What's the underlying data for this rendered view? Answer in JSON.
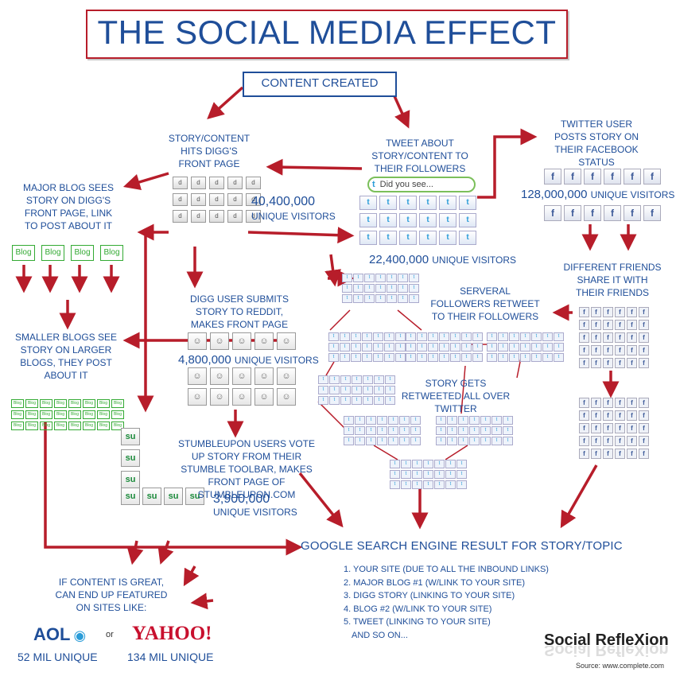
{
  "title": "THE SOCIAL MEDIA EFFECT",
  "content_created": "CONTENT CREATED",
  "labels": {
    "digg_front": "STORY/CONTENT HITS DIGG'S FRONT PAGE",
    "tweet_about": "TWEET ABOUT STORY/CONTENT TO THEIR FOLLOWERS",
    "twitter_fb": "TWITTER USER POSTS STORY ON THEIR FACEBOOK STATUS",
    "major_blog": "MAJOR BLOG SEES STORY ON DIGG'S FRONT PAGE, LINK TO POST ABOUT IT",
    "different_friends": "DIFFERENT FRIENDS SHARE IT WITH THEIR FRIENDS",
    "several_followers": "SERVERAL FOLLOWERS RETWEET TO THEIR FOLLOWERS",
    "digg_reddit": "DIGG USER SUBMITS STORY TO REDDIT, MAKES FRONT PAGE",
    "smaller_blogs": "SMALLER BLOGS SEE STORY ON LARGER BLOGS, THEY POST ABOUT IT",
    "retweeted_all": "STORY GETS RETWEETED ALL OVER TWITTER",
    "stumbleupon": "STUMBLEUPON USERS VOTE UP STORY FROM THEIR STUMBLE TOOLBAR, MAKES FRONT PAGE OF STUMBLEUPON.COM",
    "featured": "IF CONTENT IS GREAT, CAN END UP FEATURED ON SITES LIKE:"
  },
  "tweet_bubble": "Did you see...",
  "stats": {
    "digg_num": "40,400,000",
    "digg_unit": "UNIQUE VISITORS",
    "twitter_num": "22,400,000",
    "twitter_unit": "UNIQUE VISITORS",
    "facebook_num": "128,000,000",
    "facebook_unit": "UNIQUE VISITORS",
    "reddit_num": "4,800,000",
    "reddit_unit": "UNIQUE VISITORS",
    "su_num": "3,900,000",
    "su_unit": "UNIQUE VISITORS"
  },
  "blog_label": "Blog",
  "google": {
    "heading": "GOOGLE SEARCH ENGINE RESULT FOR STORY/TOPIC",
    "items": [
      "1. YOUR SITE (DUE TO ALL THE INBOUND LINKS)",
      "2. MAJOR BLOG #1 (W/LINK TO YOUR SITE)",
      "3. DIGG STORY (LINKING TO YOUR SITE)",
      "4. BLOG #2 (W/LINK TO YOUR SITE)",
      "5. TWEET (LINKING TO YOUR SITE)",
      "AND SO ON..."
    ]
  },
  "sites": {
    "aol": "AOL",
    "or": "or",
    "yahoo": "YAHOO!",
    "aol_unique": "52 MIL UNIQUE",
    "yahoo_unique": "134 MIL UNIQUE"
  },
  "brand": "Social RefleXion",
  "source": "Source:  www.complete.com",
  "colors": {
    "accent_red": "#b71d2a",
    "text_blue": "#1f4e99",
    "blog_green": "#33aa33"
  }
}
